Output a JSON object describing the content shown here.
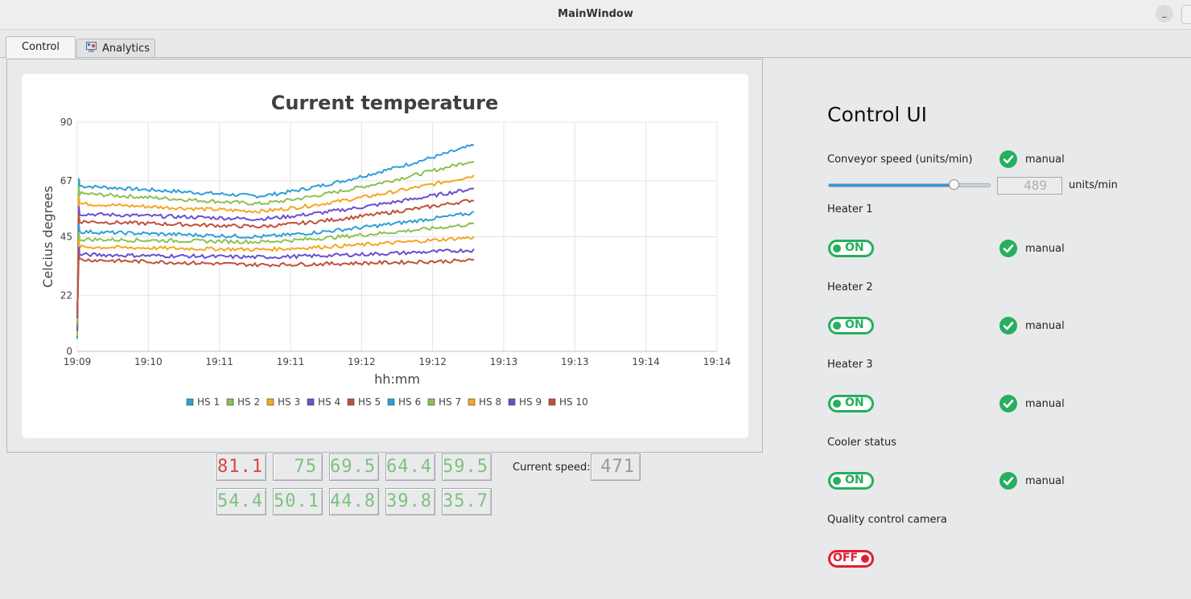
{
  "window": {
    "title": "MainWindow",
    "minimize_label": "_"
  },
  "tabs": [
    {
      "label": "Control",
      "active": true
    },
    {
      "label": "Analytics",
      "active": false,
      "icon": "analytics-icon"
    }
  ],
  "chart_data": {
    "type": "line",
    "title": "Current temperature",
    "xlabel": "hh:mm",
    "ylabel": "Celcius degrees",
    "x_tick_labels": [
      "19:09",
      "19:10",
      "19:11",
      "19:11",
      "19:12",
      "19:12",
      "19:13",
      "19:13",
      "19:14",
      "19:14"
    ],
    "y_ticks": [
      0,
      22,
      45,
      67,
      90
    ],
    "ylim": [
      0,
      90
    ],
    "x_range_fraction_of_axis": [
      0,
      0.62
    ],
    "grid": true,
    "legend_position": "bottom",
    "series": [
      {
        "name": "HS 1",
        "color": "#2e9fd8",
        "start": 65,
        "flat": 61,
        "end": 81
      },
      {
        "name": "HS 2",
        "color": "#8cc152",
        "start": 62,
        "flat": 58,
        "end": 75
      },
      {
        "name": "HS 3",
        "color": "#f5a623",
        "start": 58,
        "flat": 55,
        "end": 69
      },
      {
        "name": "HS 4",
        "color": "#6a4fcf",
        "start": 54,
        "flat": 52,
        "end": 64
      },
      {
        "name": "HS 5",
        "color": "#c0503a",
        "start": 51,
        "flat": 49,
        "end": 59.5
      },
      {
        "name": "HS 6",
        "color": "#2e9fd8",
        "start": 47,
        "flat": 45,
        "end": 54.4
      },
      {
        "name": "HS 7",
        "color": "#8cc152",
        "start": 44,
        "flat": 43,
        "end": 50
      },
      {
        "name": "HS 8",
        "color": "#f5a623",
        "start": 41,
        "flat": 40,
        "end": 44.8
      },
      {
        "name": "HS 9",
        "color": "#6a4fcf",
        "start": 38,
        "flat": 37,
        "end": 39.8
      },
      {
        "name": "HS 10",
        "color": "#c0503a",
        "start": 36,
        "flat": 34,
        "end": 35.7
      }
    ]
  },
  "readouts": [
    "81.1",
    "75",
    "69.5",
    "64.4",
    "59.5",
    "54.4",
    "50.1",
    "44.8",
    "39.8",
    "35.7"
  ],
  "current_speed": {
    "label": "Current speed:",
    "value": "471"
  },
  "control": {
    "title": "Control UI",
    "conveyor": {
      "label": "Conveyor speed (units/min)",
      "manual": "manual",
      "slider_fraction": 0.78,
      "value": "489",
      "units": "units/min"
    },
    "heaters": [
      {
        "label": "Heater 1",
        "state": "ON",
        "manual": "manual"
      },
      {
        "label": "Heater 2",
        "state": "ON",
        "manual": "manual"
      },
      {
        "label": "Heater 3",
        "state": "ON",
        "manual": "manual"
      },
      {
        "label": "Cooler status",
        "state": "ON",
        "manual": "manual"
      }
    ],
    "camera": {
      "label": "Quality control camera",
      "state": "OFF"
    }
  }
}
